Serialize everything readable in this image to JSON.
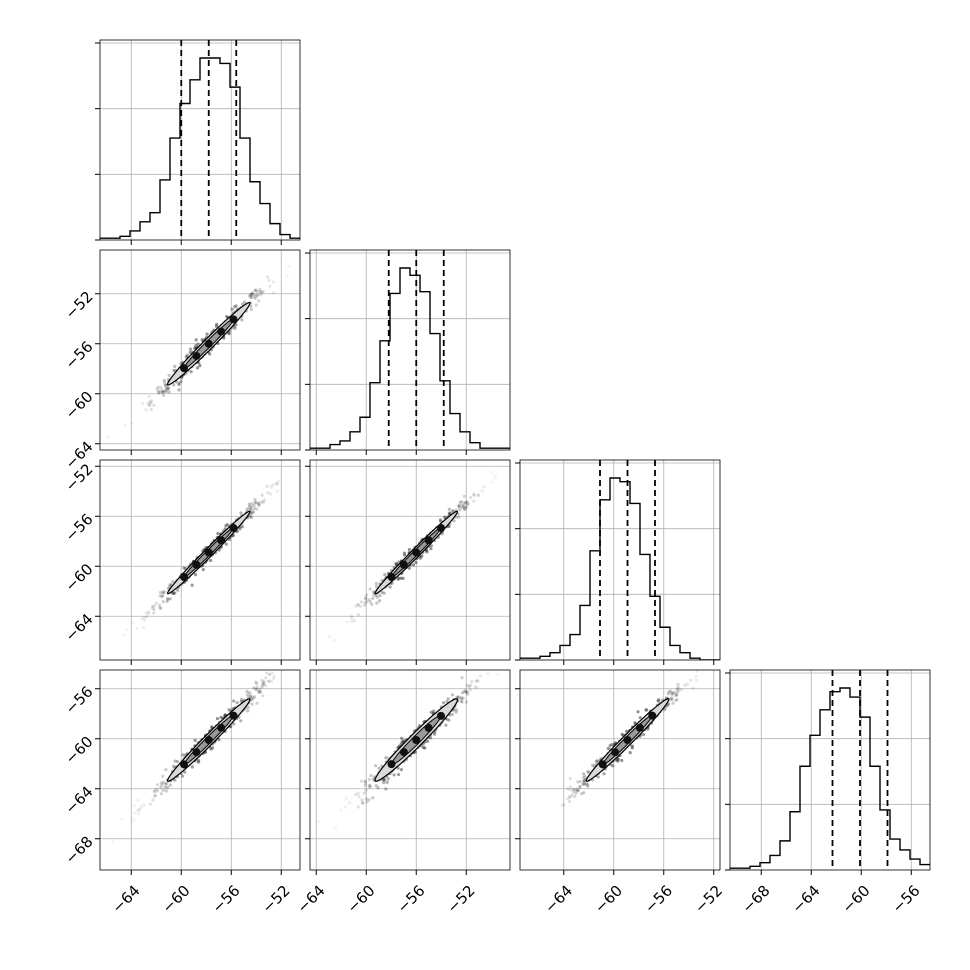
{
  "chart_data": {
    "type": "corner",
    "n_params": 4,
    "param_labels": [
      "",
      "",
      "",
      ""
    ],
    "ranges": [
      [
        -66.5,
        -50.5
      ],
      [
        -64.5,
        -48.5
      ],
      [
        -67.5,
        -51.5
      ],
      [
        -70.5,
        -54.5
      ]
    ],
    "ticks": [
      [
        -64,
        -60,
        -56,
        -52
      ],
      [
        -64,
        -60,
        -56,
        -52
      ],
      [
        -64,
        -60,
        -56,
        -52
      ],
      [
        -68,
        -64,
        -60,
        -56
      ]
    ],
    "x_tick_labels": [
      [
        "−64",
        "−60",
        "−56",
        "−52"
      ],
      [
        "−64",
        "−60",
        "−56",
        "−52"
      ],
      [
        "−64",
        "−60",
        "−56",
        "−52"
      ],
      [
        "−68",
        "−64",
        "−60",
        "−56"
      ]
    ],
    "y_tick_labels": [
      [],
      [
        "−64",
        "−60",
        "−56",
        "−52"
      ],
      [
        "−64",
        "−60",
        "−56",
        "−52"
      ],
      [
        "−68",
        "−64",
        "−60",
        "−56"
      ]
    ],
    "quantiles": [
      [
        -60.0,
        -57.8,
        -55.6
      ],
      [
        -58.2,
        -56.0,
        -53.8
      ],
      [
        -61.1,
        -58.9,
        -56.7
      ],
      [
        -62.3,
        -60.1,
        -57.9
      ]
    ],
    "histograms": [
      {
        "edges_start": -66.5,
        "bin_width": 0.8,
        "counts": [
          1,
          1,
          2,
          5,
          10,
          15,
          33,
          56,
          75,
          88,
          100,
          100,
          97,
          84,
          56,
          32,
          20,
          9,
          3,
          1
        ]
      },
      {
        "edges_start": -64.5,
        "bin_width": 0.8,
        "counts": [
          1,
          1,
          3,
          5,
          10,
          18,
          37,
          60,
          86,
          100,
          96,
          87,
          64,
          38,
          20,
          10,
          4,
          1,
          1,
          1
        ]
      },
      {
        "edges_start": -67.5,
        "bin_width": 0.8,
        "counts": [
          1,
          1,
          2,
          4,
          8,
          14,
          30,
          60,
          88,
          100,
          98,
          86,
          58,
          35,
          18,
          8,
          4,
          1,
          0,
          0
        ]
      },
      {
        "edges_start": -70.5,
        "bin_width": 0.8,
        "counts": [
          1,
          1,
          2,
          4,
          8,
          16,
          32,
          57,
          74,
          88,
          98,
          100,
          95,
          84,
          57,
          33,
          17,
          11,
          6,
          3
        ]
      }
    ],
    "scatter_pairs": [
      {
        "row": 1,
        "col": 0,
        "center": [
          -57.8,
          -56.0
        ],
        "corr": 0.985
      },
      {
        "row": 2,
        "col": 0,
        "center": [
          -57.8,
          -58.9
        ],
        "corr": 0.99
      },
      {
        "row": 2,
        "col": 1,
        "center": [
          -56.0,
          -58.9
        ],
        "corr": 0.99
      },
      {
        "row": 3,
        "col": 0,
        "center": [
          -57.8,
          -60.1
        ],
        "corr": 0.985
      },
      {
        "row": 3,
        "col": 1,
        "center": [
          -56.0,
          -60.1
        ],
        "corr": 0.975
      },
      {
        "row": 3,
        "col": 2,
        "center": [
          -58.9,
          -60.1
        ],
        "corr": 0.985
      }
    ],
    "grid": true,
    "colors": {
      "hist": "#000000",
      "contour_fill": "#d9d9d9",
      "contour_line": "#000000",
      "points": "#333333",
      "grid": "#b0b0b0"
    }
  }
}
